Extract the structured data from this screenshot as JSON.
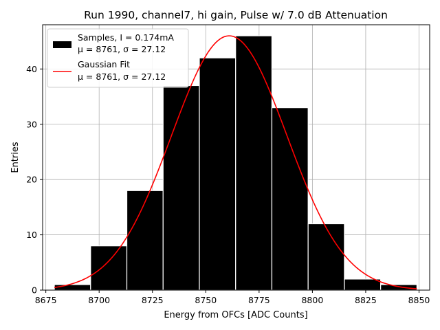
{
  "chart_data": {
    "type": "bar",
    "title": "Run 1990, channel7, hi gain, Pulse w/ 7.0 dB Attenuation",
    "xlabel": "Energy from OFCs [ADC Counts]",
    "ylabel": "Entries",
    "xlim": [
      8673.5,
      8855
    ],
    "ylim": [
      0,
      48
    ],
    "grid": true,
    "xticks": [
      8675,
      8700,
      8725,
      8750,
      8775,
      8800,
      8825,
      8850
    ],
    "xtick_labels": [
      "8675",
      "8700",
      "8725",
      "8750",
      "8775",
      "8800",
      "8825",
      "8850"
    ],
    "yticks": [
      0,
      10,
      20,
      30,
      40
    ],
    "ytick_labels": [
      "0",
      "10",
      "20",
      "30",
      "40"
    ],
    "histogram": {
      "bin_edges": [
        8679,
        8696,
        8713,
        8730,
        8747,
        8764,
        8781,
        8798,
        8815,
        8832,
        8849
      ],
      "counts": [
        1,
        8,
        18,
        37,
        42,
        46,
        33,
        12,
        2,
        1
      ],
      "color": "#000000",
      "edgecolor": "#ffffff"
    },
    "gaussian_fit": {
      "mu": 8761,
      "sigma": 27.12,
      "amplitude": 46,
      "x_range": [
        8679,
        8849
      ],
      "color": "#ff0000"
    },
    "legend": {
      "placement": "top-left",
      "entries": [
        {
          "line1": "Samples, I = 0.174mA",
          "line2": "μ = 8761, σ = 27.12",
          "kind": "patch",
          "color": "#000000"
        },
        {
          "line1": "Gaussian Fit",
          "line2": "μ = 8761, σ = 27.12",
          "kind": "line",
          "color": "#ff0000"
        }
      ]
    }
  }
}
